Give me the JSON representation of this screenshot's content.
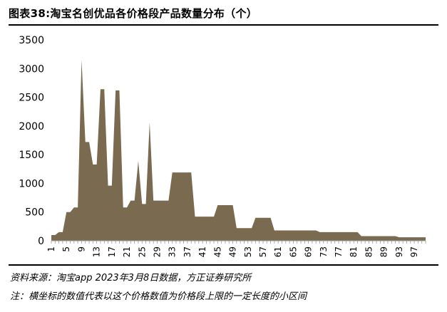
{
  "title": "图表38:淘宝名创优品各价格段产品数量分布（个）",
  "footnotes": {
    "source": "资料来源：淘宝app 2023年3月8日数据，方正证券研究所",
    "note": "注：横坐标的数值代表以这个价格数值为价格段上限的一定长度的小区间"
  },
  "chart_data": {
    "type": "area",
    "title": "图表38:淘宝名创优品各价格段产品数量分布（个）",
    "xlabel": "",
    "ylabel": "",
    "ylim": [
      0,
      3500
    ],
    "yticks": [
      0,
      500,
      1000,
      1500,
      2000,
      2500,
      3000,
      3500
    ],
    "xlim": [
      1,
      100
    ],
    "xticks": [
      1,
      5,
      9,
      13,
      17,
      21,
      25,
      29,
      33,
      37,
      41,
      45,
      49,
      53,
      57,
      61,
      65,
      69,
      73,
      77,
      81,
      85,
      89,
      93,
      97
    ],
    "grid": false,
    "legend": "none",
    "fill_color": "#7a6a4f",
    "x": [
      1,
      2,
      3,
      4,
      5,
      6,
      7,
      8,
      9,
      10,
      11,
      12,
      13,
      14,
      15,
      16,
      17,
      18,
      19,
      20,
      21,
      22,
      23,
      24,
      25,
      26,
      27,
      28,
      29,
      30,
      31,
      32,
      33,
      34,
      35,
      36,
      37,
      38,
      39,
      40,
      41,
      42,
      43,
      44,
      45,
      46,
      47,
      48,
      49,
      50,
      51,
      52,
      53,
      54,
      55,
      56,
      57,
      58,
      59,
      60,
      61,
      62,
      63,
      64,
      65,
      66,
      67,
      68,
      69,
      70,
      71,
      72,
      73,
      74,
      75,
      76,
      77,
      78,
      79,
      80,
      81,
      82,
      83,
      84,
      85,
      86,
      87,
      88,
      89,
      90,
      91,
      92,
      93,
      94,
      95,
      96,
      97,
      98,
      99,
      100
    ],
    "values": [
      100,
      100,
      150,
      150,
      500,
      500,
      580,
      580,
      3150,
      1720,
      1720,
      1330,
      1330,
      2640,
      2640,
      960,
      960,
      2620,
      2620,
      580,
      580,
      700,
      700,
      1390,
      640,
      640,
      2060,
      700,
      700,
      700,
      700,
      700,
      1190,
      1190,
      1190,
      1190,
      1190,
      1190,
      420,
      420,
      420,
      420,
      420,
      420,
      620,
      620,
      620,
      620,
      620,
      220,
      220,
      220,
      220,
      220,
      400,
      400,
      400,
      400,
      400,
      180,
      180,
      180,
      180,
      180,
      180,
      180,
      180,
      180,
      180,
      180,
      180,
      150,
      150,
      150,
      150,
      150,
      150,
      150,
      150,
      150,
      150,
      150,
      80,
      80,
      80,
      80,
      80,
      80,
      80,
      80,
      80,
      80,
      60,
      60,
      60,
      60,
      60,
      60,
      60,
      60
    ]
  }
}
